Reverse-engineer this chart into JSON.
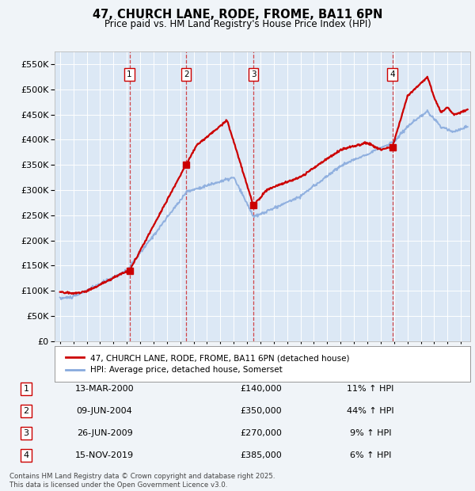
{
  "title": "47, CHURCH LANE, RODE, FROME, BA11 6PN",
  "subtitle": "Price paid vs. HM Land Registry's House Price Index (HPI)",
  "legend_line1": "47, CHURCH LANE, RODE, FROME, BA11 6PN (detached house)",
  "legend_line2": "HPI: Average price, detached house, Somerset",
  "footnote": "Contains HM Land Registry data © Crown copyright and database right 2025.\nThis data is licensed under the Open Government Licence v3.0.",
  "table": [
    {
      "num": "1",
      "date": "13-MAR-2000",
      "price": "£140,000",
      "hpi": "11% ↑ HPI"
    },
    {
      "num": "2",
      "date": "09-JUN-2004",
      "price": "£350,000",
      "hpi": "44% ↑ HPI"
    },
    {
      "num": "3",
      "date": "26-JUN-2009",
      "price": "£270,000",
      "hpi": "9% ↑ HPI"
    },
    {
      "num": "4",
      "date": "15-NOV-2019",
      "price": "£385,000",
      "hpi": "6% ↑ HPI"
    }
  ],
  "background_color": "#f0f4f8",
  "plot_bg_color": "#dce8f5",
  "red_color": "#cc0000",
  "blue_color": "#88aadd",
  "grid_color": "#ffffff",
  "ylim": [
    0,
    575000
  ],
  "yticks": [
    0,
    50000,
    100000,
    150000,
    200000,
    250000,
    300000,
    350000,
    400000,
    450000,
    500000,
    550000
  ],
  "sale_years": [
    2000.2,
    2004.44,
    2009.48,
    2019.87
  ],
  "sale_prices": [
    140000,
    350000,
    270000,
    385000
  ],
  "sale_labels": [
    "1",
    "2",
    "3",
    "4"
  ]
}
